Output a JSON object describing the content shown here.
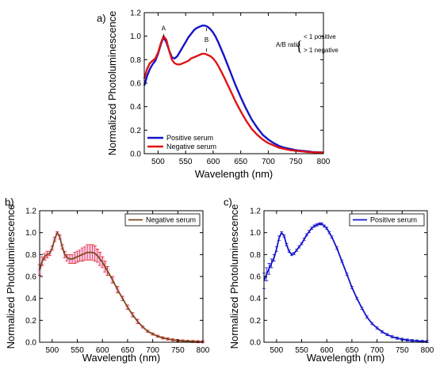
{
  "chart_data": [
    {
      "panel": "a)",
      "type": "line",
      "xlabel": "Wavelength (nm)",
      "ylabel": "Normalized Photoluminescence",
      "xlim": [
        475,
        800
      ],
      "ylim": [
        0,
        1.2
      ],
      "xticks": [
        500,
        550,
        600,
        650,
        700,
        750,
        800
      ],
      "yticks": [
        0.0,
        0.2,
        0.4,
        0.6,
        0.8,
        1.0,
        1.2
      ],
      "x": [
        475,
        480,
        485,
        490,
        495,
        500,
        505,
        510,
        515,
        520,
        525,
        530,
        535,
        540,
        545,
        550,
        555,
        560,
        565,
        570,
        575,
        580,
        585,
        590,
        595,
        600,
        605,
        610,
        620,
        630,
        640,
        650,
        660,
        670,
        680,
        690,
        700,
        710,
        720,
        730,
        740,
        750,
        760,
        770,
        780,
        790,
        800
      ],
      "series": [
        {
          "name": "Positive serum",
          "color": "#1414c8",
          "values": [
            0.58,
            0.66,
            0.72,
            0.76,
            0.79,
            0.85,
            0.93,
            0.99,
            0.95,
            0.88,
            0.82,
            0.81,
            0.83,
            0.87,
            0.91,
            0.95,
            0.99,
            1.02,
            1.05,
            1.07,
            1.08,
            1.09,
            1.09,
            1.08,
            1.06,
            1.03,
            0.99,
            0.94,
            0.83,
            0.71,
            0.59,
            0.48,
            0.38,
            0.29,
            0.22,
            0.16,
            0.12,
            0.09,
            0.065,
            0.05,
            0.04,
            0.03,
            0.025,
            0.02,
            0.015,
            0.012,
            0.01
          ]
        },
        {
          "name": "Negative serum",
          "color": "#e01414",
          "values": [
            0.64,
            0.72,
            0.77,
            0.79,
            0.81,
            0.86,
            0.94,
            1.0,
            0.97,
            0.88,
            0.8,
            0.77,
            0.76,
            0.76,
            0.77,
            0.78,
            0.79,
            0.81,
            0.82,
            0.83,
            0.84,
            0.85,
            0.85,
            0.84,
            0.83,
            0.81,
            0.78,
            0.74,
            0.65,
            0.55,
            0.45,
            0.36,
            0.28,
            0.21,
            0.16,
            0.12,
            0.09,
            0.07,
            0.05,
            0.04,
            0.03,
            0.025,
            0.02,
            0.015,
            0.012,
            0.01,
            0.008
          ]
        }
      ],
      "annotations": {
        "peak_a": "A",
        "peak_b": "B",
        "ratio_label": "A/B ratio",
        "lt_text": "< 1 positive",
        "gt_text": "> 1 negative"
      },
      "legend_position": "bottom-left"
    },
    {
      "panel": "b)",
      "type": "line",
      "xlabel": "Wavelength (nm)",
      "ylabel": "Normalized Photoluminescence",
      "xlim": [
        475,
        800
      ],
      "ylim": [
        0,
        1.2
      ],
      "xticks": [
        500,
        550,
        600,
        650,
        700,
        750,
        800
      ],
      "yticks": [
        0.0,
        0.2,
        0.4,
        0.6,
        0.8,
        1.0,
        1.2
      ],
      "x": [
        475,
        480,
        485,
        490,
        495,
        500,
        505,
        510,
        515,
        520,
        525,
        530,
        535,
        540,
        545,
        550,
        555,
        560,
        565,
        570,
        575,
        580,
        585,
        590,
        595,
        600,
        605,
        610,
        620,
        630,
        640,
        650,
        660,
        670,
        680,
        690,
        700,
        710,
        720,
        730,
        740,
        750,
        760,
        770,
        780,
        790,
        800
      ],
      "series": [
        {
          "name": "Negative serum",
          "color": "#7a4a1e",
          "error_color": "#e01414",
          "values": [
            0.66,
            0.74,
            0.78,
            0.8,
            0.81,
            0.86,
            0.94,
            1.0,
            0.96,
            0.87,
            0.8,
            0.77,
            0.76,
            0.76,
            0.77,
            0.78,
            0.79,
            0.8,
            0.81,
            0.82,
            0.82,
            0.82,
            0.81,
            0.79,
            0.76,
            0.73,
            0.69,
            0.65,
            0.57,
            0.48,
            0.4,
            0.32,
            0.25,
            0.19,
            0.14,
            0.1,
            0.075,
            0.055,
            0.04,
            0.03,
            0.022,
            0.016,
            0.012,
            0.009,
            0.007,
            0.005,
            0.004
          ],
          "errors": [
            0.05,
            0.04,
            0.03,
            0.03,
            0.02,
            0.02,
            0.02,
            0.01,
            0.02,
            0.02,
            0.03,
            0.03,
            0.04,
            0.04,
            0.05,
            0.05,
            0.05,
            0.06,
            0.06,
            0.07,
            0.07,
            0.07,
            0.07,
            0.06,
            0.06,
            0.05,
            0.05,
            0.04,
            0.03,
            0.03,
            0.02,
            0.02,
            0.02,
            0.02,
            0.01,
            0.01,
            0.01,
            0.01,
            0.01,
            0.01,
            0.01,
            0.01,
            0.01,
            0.01,
            0.01,
            0.01,
            0.01
          ]
        }
      ],
      "legend_position": "top-right"
    },
    {
      "panel": "c)",
      "type": "line",
      "xlabel": "Wavelength (nm)",
      "ylabel": "Normalized Photoluminescence",
      "xlim": [
        475,
        800
      ],
      "ylim": [
        0,
        1.2
      ],
      "xticks": [
        500,
        550,
        600,
        650,
        700,
        750,
        800
      ],
      "yticks": [
        0.0,
        0.2,
        0.4,
        0.6,
        0.8,
        1.0,
        1.2
      ],
      "x": [
        475,
        480,
        485,
        490,
        495,
        500,
        505,
        510,
        515,
        520,
        525,
        530,
        535,
        540,
        545,
        550,
        555,
        560,
        565,
        570,
        575,
        580,
        585,
        590,
        595,
        600,
        605,
        610,
        620,
        630,
        640,
        650,
        660,
        670,
        680,
        690,
        700,
        710,
        720,
        730,
        740,
        750,
        760,
        770,
        780,
        790,
        800
      ],
      "series": [
        {
          "name": "Positive serum",
          "color": "#1414c8",
          "error_color": "#1414c8",
          "values": [
            0.56,
            0.62,
            0.67,
            0.72,
            0.77,
            0.85,
            0.95,
            1.0,
            0.97,
            0.89,
            0.83,
            0.8,
            0.81,
            0.84,
            0.87,
            0.9,
            0.94,
            0.98,
            1.01,
            1.04,
            1.06,
            1.07,
            1.08,
            1.08,
            1.06,
            1.04,
            1.0,
            0.96,
            0.86,
            0.74,
            0.62,
            0.5,
            0.4,
            0.31,
            0.23,
            0.17,
            0.13,
            0.095,
            0.07,
            0.05,
            0.037,
            0.027,
            0.02,
            0.015,
            0.011,
            0.008,
            0.006
          ],
          "errors": [
            0.07,
            0.06,
            0.05,
            0.04,
            0.03,
            0.02,
            0.02,
            0.01,
            0.01,
            0.01,
            0.01,
            0.01,
            0.01,
            0.01,
            0.01,
            0.01,
            0.01,
            0.01,
            0.01,
            0.01,
            0.01,
            0.01,
            0.01,
            0.01,
            0.01,
            0.01,
            0.01,
            0.01,
            0.01,
            0.01,
            0.01,
            0.01,
            0.01,
            0.01,
            0.01,
            0.01,
            0.01,
            0.01,
            0.01,
            0.01,
            0.01,
            0.01,
            0.01,
            0.01,
            0.01,
            0.01,
            0.01
          ]
        }
      ],
      "legend_position": "top-right"
    }
  ]
}
